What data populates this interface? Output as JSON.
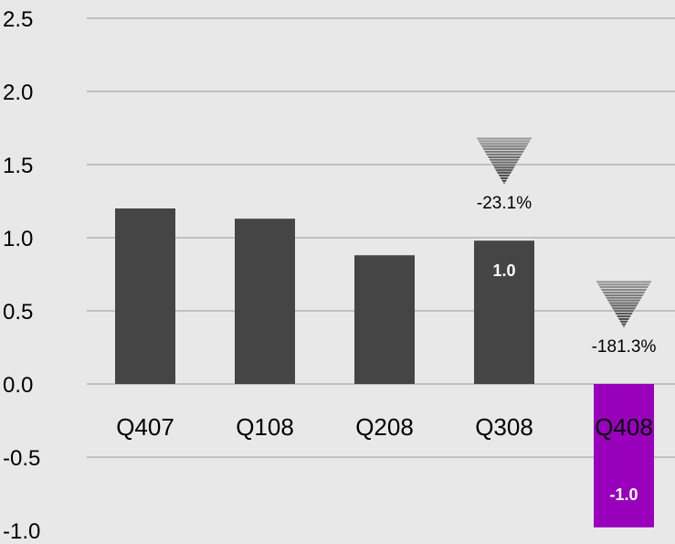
{
  "chart_data": {
    "type": "bar",
    "categories": [
      "Q407",
      "Q108",
      "Q208",
      "Q308",
      "Q408"
    ],
    "values": [
      1.2,
      1.13,
      0.88,
      0.98,
      -0.98
    ],
    "ylim": [
      -1.0,
      2.5
    ],
    "yticks": [
      "2.5",
      "2.0",
      "1.5",
      "1.0",
      "0.5",
      "0.0",
      "-0.5",
      "-1.0"
    ],
    "ytick_values": [
      2.5,
      2.0,
      1.5,
      1.0,
      0.5,
      0.0,
      -0.5,
      -1.0
    ],
    "grid": true,
    "bar_colors": [
      "#454545",
      "#454545",
      "#454545",
      "#454545",
      "#9900bb"
    ],
    "bar_labels": [
      {
        "index": 3,
        "text": "1.0"
      },
      {
        "index": 4,
        "text": "-1.0"
      }
    ],
    "change_annotations": [
      {
        "index": 3,
        "text": "-23.1%",
        "direction": "down"
      },
      {
        "index": 4,
        "text": "-181.3%",
        "direction": "down"
      }
    ],
    "title": "",
    "xlabel": "",
    "ylabel": ""
  },
  "colors": {
    "background": "#e8e8e8",
    "bar_default": "#454545",
    "bar_highlight": "#9900bb",
    "gridline": "#9a9a9a",
    "arrow": "#8a8a8a"
  }
}
